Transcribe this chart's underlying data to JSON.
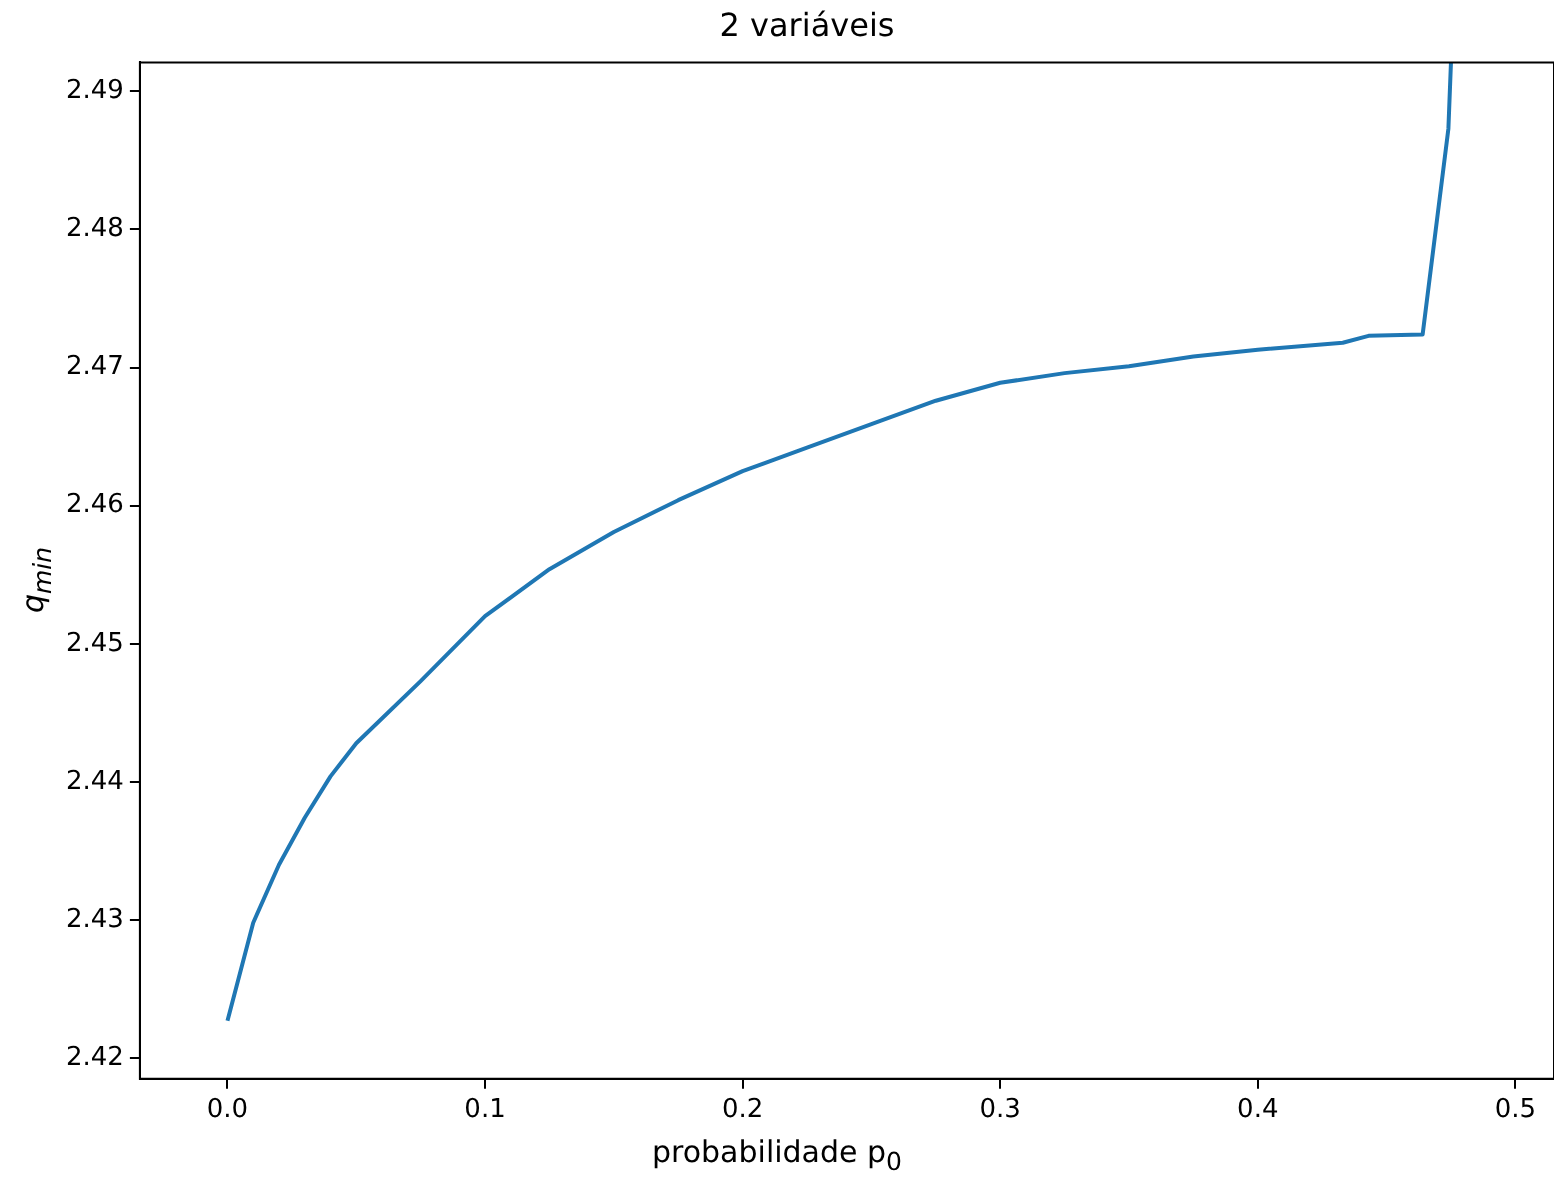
{
  "chart_data": {
    "type": "line",
    "title": "2 variáveis",
    "xlabel": "probabilidade p$_{0}$",
    "ylabel": "q$_{min}$",
    "x": [
      0,
      0.01,
      0.02,
      0.03,
      0.04,
      0.05,
      0.075,
      0.1,
      0.125,
      0.15,
      0.175,
      0.2,
      0.225,
      0.25,
      0.275,
      0.3,
      0.325,
      0.35,
      0.375,
      0.4,
      0.433,
      0.443,
      0.464,
      0.474,
      0.475
    ],
    "series": [
      {
        "color": "#1f77b4",
        "values": [
          2.4227,
          2.4298,
          2.434,
          2.4374,
          2.4404,
          2.4428,
          2.4473,
          2.452,
          2.4554,
          2.4581,
          2.4604,
          2.4625,
          2.4642,
          2.4659,
          2.4676,
          2.4689,
          2.4696,
          2.4701,
          2.4708,
          2.4713,
          2.4718,
          2.4723,
          2.4724,
          2.4873,
          2.4921
        ]
      }
    ],
    "xlim": [
      -0.034,
      0.515
    ],
    "ylim": [
      2.4185,
      2.4921
    ],
    "xticks": [
      {
        "value": 0,
        "label": "0.0"
      },
      0.1,
      0.2,
      0.3,
      0.4,
      0.5
    ],
    "yticks": [
      {
        "value": 2.42,
        "label": "2.42"
      },
      2.43,
      2.44,
      2.45,
      2.46,
      2.47,
      2.48,
      2.49
    ],
    "grid": false,
    "legend": false
  }
}
